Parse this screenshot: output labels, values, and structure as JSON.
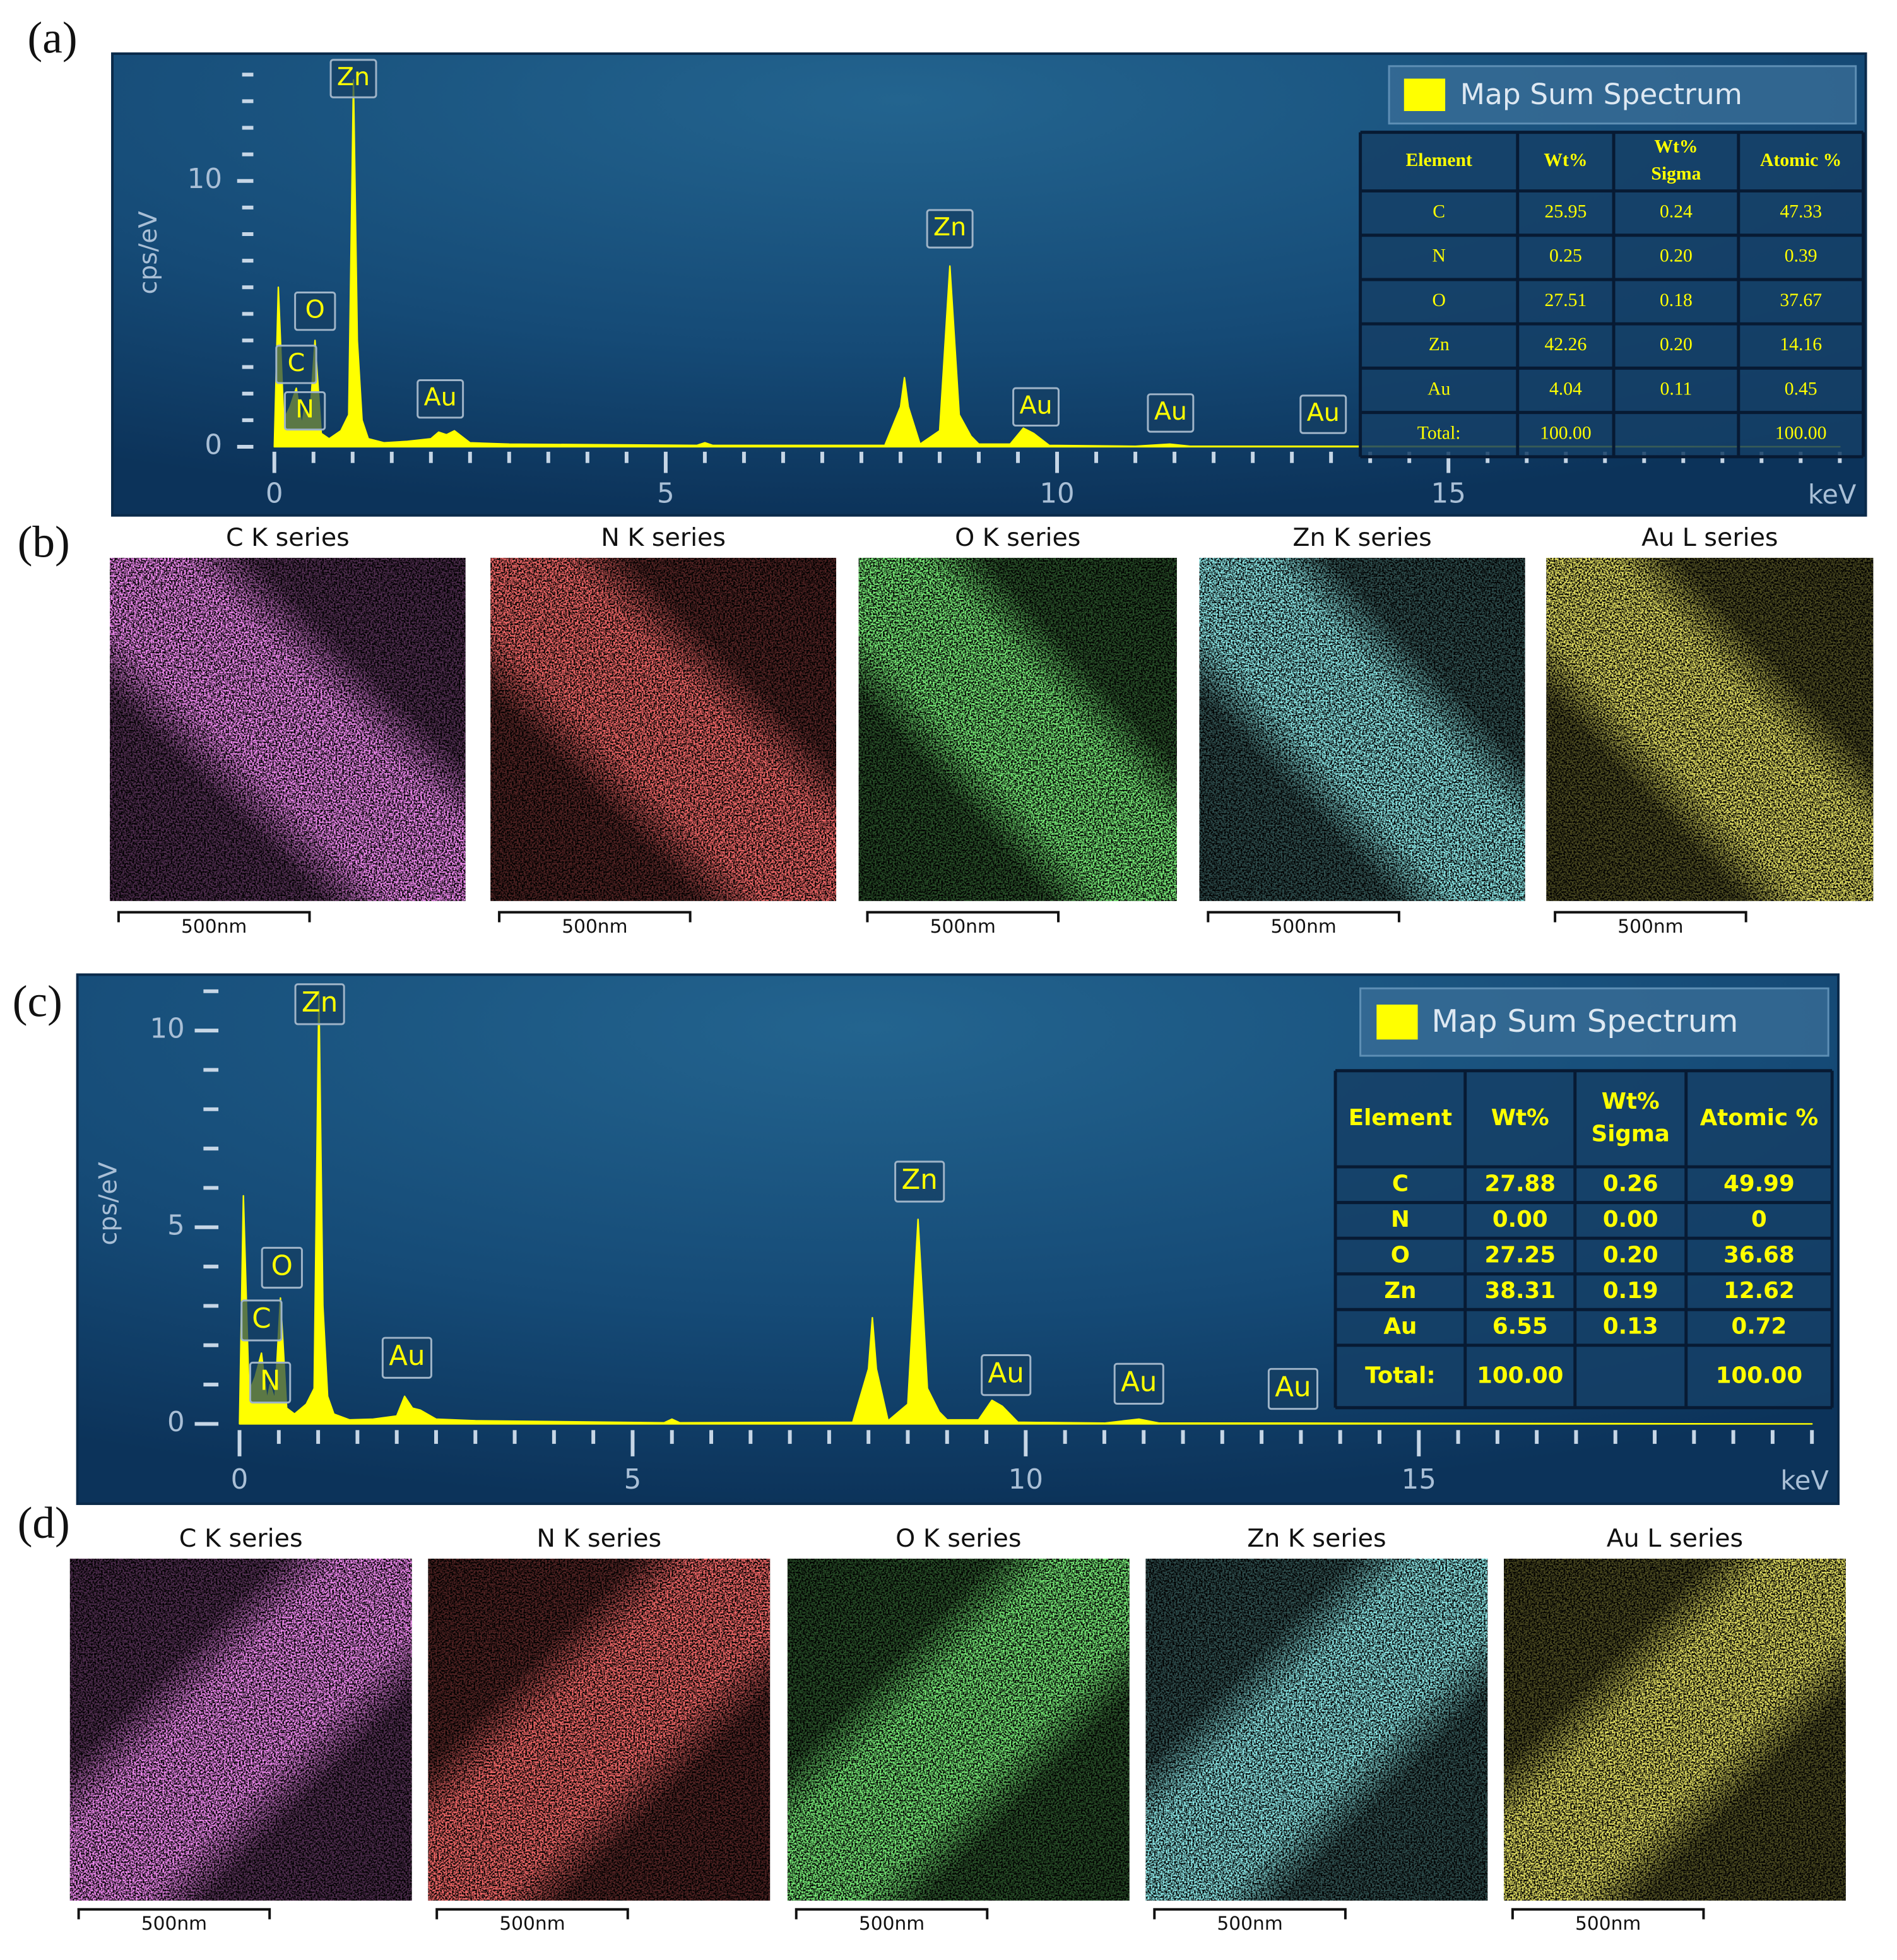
{
  "chart_data": [
    {
      "type": "area",
      "panel_label": "(a)",
      "xlabel": "keV",
      "ylabel": "cps/eV",
      "x": [
        0,
        0.05,
        0.12,
        0.2,
        0.28,
        0.35,
        0.39,
        0.45,
        0.52,
        0.6,
        0.7,
        0.85,
        0.95,
        1.01,
        1.06,
        1.12,
        1.2,
        1.4,
        1.7,
        2.0,
        2.1,
        2.2,
        2.3,
        2.5,
        3,
        5.4,
        5.5,
        5.6,
        7.8,
        8.0,
        8.05,
        8.1,
        8.25,
        8.5,
        8.63,
        8.75,
        8.9,
        9.0,
        9.4,
        9.57,
        9.7,
        9.9,
        11.0,
        11.44,
        11.7,
        13.4,
        20
      ],
      "series": [
        {
          "name": "Map Sum Spectrum",
          "color": "#ffff00",
          "values": [
            0,
            6.0,
            1.0,
            1.5,
            2.2,
            0.8,
            1.5,
            0.9,
            4.0,
            0.5,
            0.3,
            0.6,
            1.2,
            13.8,
            4,
            1.0,
            0.3,
            0.15,
            0.2,
            0.3,
            0.55,
            0.45,
            0.6,
            0.15,
            0.1,
            0.05,
            0.15,
            0.05,
            0.05,
            1.5,
            2.6,
            1.5,
            0.1,
            0.6,
            6.8,
            1.2,
            0.4,
            0.1,
            0.1,
            0.7,
            0.5,
            0.05,
            0.02,
            0.1,
            0.02,
            0.02,
            0
          ]
        }
      ],
      "xlim": [
        -0.3,
        20.3
      ],
      "ylim": [
        0,
        14.6
      ],
      "xticks": [
        0,
        5,
        10,
        15
      ],
      "xticks_minor": [
        0.5,
        1,
        1.5,
        2,
        2.5,
        3,
        3.5,
        4,
        4.5,
        5.5,
        6,
        6.5,
        7,
        7.5,
        8,
        8.5,
        9,
        9.5,
        10.5,
        11,
        11.5,
        12,
        12.5,
        13,
        13.5,
        14,
        14.5,
        15.5,
        16,
        16.5,
        17,
        17.5,
        18,
        18.5,
        19,
        19.5,
        20
      ],
      "yticks": [
        0,
        10
      ],
      "yticks_minor": [
        1,
        2,
        3,
        4,
        5,
        6,
        7,
        8,
        9,
        11,
        12,
        13,
        14
      ],
      "annotations": [
        {
          "text": "Zn",
          "x": 1.01,
          "y": 13.85
        },
        {
          "text": "O",
          "x": 0.52,
          "y": 5.1
        },
        {
          "text": "C",
          "x": 0.28,
          "y": 3.1
        },
        {
          "text": "N",
          "x": 0.39,
          "y": 1.35
        },
        {
          "text": "Au",
          "x": 2.12,
          "y": 1.8
        },
        {
          "text": "Zn",
          "x": 8.63,
          "y": 8.2
        },
        {
          "text": "Au",
          "x": 9.73,
          "y": 1.5
        },
        {
          "text": "Au",
          "x": 11.45,
          "y": 1.27
        },
        {
          "text": "Au",
          "x": 13.4,
          "y": 1.22
        }
      ],
      "table": {
        "columns": [
          "Element",
          "Wt%",
          [
            "Wt%",
            "Sigma"
          ],
          "Atomic %"
        ],
        "rows": [
          [
            "C",
            "25.95",
            "0.24",
            "47.33"
          ],
          [
            "N",
            "0.25",
            "0.20",
            "0.39"
          ],
          [
            "O",
            "27.51",
            "0.18",
            "37.67"
          ],
          [
            "Zn",
            "42.26",
            "0.20",
            "14.16"
          ],
          [
            "Au",
            "4.04",
            "0.11",
            "0.45"
          ],
          [
            "Total:",
            "100.00",
            null,
            "100.00"
          ]
        ]
      }
    },
    {
      "type": "area",
      "panel_label": "(c)",
      "xlabel": "keV",
      "ylabel": "cps/eV",
      "x": [
        0,
        0.05,
        0.12,
        0.2,
        0.28,
        0.35,
        0.39,
        0.45,
        0.52,
        0.6,
        0.7,
        0.85,
        0.95,
        1.01,
        1.06,
        1.12,
        1.2,
        1.4,
        1.7,
        2.0,
        2.1,
        2.2,
        2.3,
        2.5,
        3,
        5.4,
        5.5,
        5.6,
        7.8,
        8.0,
        8.05,
        8.1,
        8.25,
        8.5,
        8.63,
        8.75,
        8.9,
        9.0,
        9.4,
        9.57,
        9.7,
        9.9,
        11.0,
        11.44,
        11.7,
        13.4,
        20
      ],
      "series": [
        {
          "name": "Map Sum Spectrum",
          "color": "#ffff00",
          "values": [
            0,
            5.8,
            0.8,
            1.2,
            1.8,
            0.6,
            1.0,
            0.6,
            3.2,
            0.4,
            0.25,
            0.5,
            0.9,
            11.0,
            3.0,
            0.7,
            0.25,
            0.1,
            0.12,
            0.2,
            0.7,
            0.4,
            0.35,
            0.12,
            0.08,
            0.03,
            0.12,
            0.03,
            0.04,
            1.4,
            2.7,
            1.4,
            0.08,
            0.5,
            5.2,
            0.9,
            0.3,
            0.1,
            0.1,
            0.6,
            0.45,
            0.04,
            0.02,
            0.12,
            0.02,
            0.02,
            0
          ]
        }
      ],
      "xlim": [
        -0.3,
        20.05
      ],
      "ylim": [
        0,
        11.2
      ],
      "xticks": [
        0,
        5,
        10,
        15
      ],
      "xticks_minor": [
        0.5,
        1,
        1.5,
        2,
        2.5,
        3,
        3.5,
        4,
        4.5,
        5.5,
        6,
        6.5,
        7,
        7.5,
        8,
        8.5,
        9,
        9.5,
        10.5,
        11,
        11.5,
        12,
        12.5,
        13,
        13.5,
        14,
        14.5,
        15.5,
        16,
        16.5,
        17,
        17.5,
        18,
        18.5,
        19,
        19.5,
        20
      ],
      "yticks": [
        0,
        5,
        10
      ],
      "yticks_minor": [
        1,
        2,
        3,
        4,
        6,
        7,
        8,
        9,
        11
      ],
      "annotations": [
        {
          "text": "Zn",
          "x": 1.02,
          "y": 10.67
        },
        {
          "text": "O",
          "x": 0.54,
          "y": 3.97
        },
        {
          "text": "C",
          "x": 0.28,
          "y": 2.63
        },
        {
          "text": "N",
          "x": 0.39,
          "y": 1.05
        },
        {
          "text": "Au",
          "x": 2.13,
          "y": 1.68
        },
        {
          "text": "Zn",
          "x": 8.65,
          "y": 6.16
        },
        {
          "text": "Au",
          "x": 9.75,
          "y": 1.24
        },
        {
          "text": "Au",
          "x": 11.44,
          "y": 1.02
        },
        {
          "text": "Au",
          "x": 13.4,
          "y": 0.89
        }
      ],
      "table": {
        "columns": [
          "Element",
          "Wt%",
          [
            "Wt%",
            "Sigma"
          ],
          "Atomic %"
        ],
        "rows": [
          [
            "C",
            "27.88",
            "0.26",
            "49.99"
          ],
          [
            "N",
            "0.00",
            "0.00",
            "0"
          ],
          [
            "O",
            "27.25",
            "0.20",
            "36.68"
          ],
          [
            "Zn",
            "38.31",
            "0.19",
            "12.62"
          ],
          [
            "Au",
            "6.55",
            "0.13",
            "0.72"
          ],
          [
            "Total:",
            "100.00",
            null,
            "100.00"
          ]
        ]
      }
    }
  ],
  "maps": [
    {
      "panel_label": "(b)",
      "panels": [
        {
          "title": "C K series",
          "color": "#e040e0",
          "scale_label": "500nm"
        },
        {
          "title": "N K series",
          "color": "#e82424",
          "scale_label": "500nm"
        },
        {
          "title": "O K series",
          "color": "#30d830",
          "scale_label": "500nm"
        },
        {
          "title": "Zn K series",
          "color": "#44d4d4",
          "scale_label": "500nm"
        },
        {
          "title": "Au L series",
          "color": "#c8c020",
          "scale_label": "500nm"
        }
      ]
    },
    {
      "panel_label": "(d)",
      "panels": [
        {
          "title": "C K series",
          "color": "#e040e0",
          "scale_label": "500nm"
        },
        {
          "title": "N K series",
          "color": "#e82424",
          "scale_label": "500nm"
        },
        {
          "title": "O K series",
          "color": "#30d830",
          "scale_label": "500nm"
        },
        {
          "title": "Zn K series",
          "color": "#44d4d4",
          "scale_label": "500nm"
        },
        {
          "title": "Au L series",
          "color": "#c8c020",
          "scale_label": "500nm"
        }
      ]
    }
  ]
}
